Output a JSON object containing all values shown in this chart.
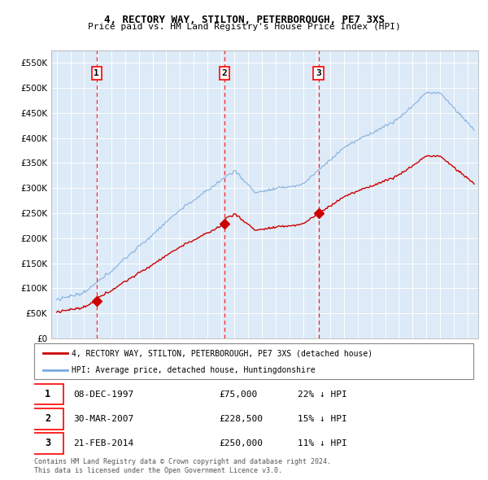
{
  "title1": "4, RECTORY WAY, STILTON, PETERBOROUGH, PE7 3XS",
  "title2": "Price paid vs. HM Land Registry's House Price Index (HPI)",
  "legend_label_red": "4, RECTORY WAY, STILTON, PETERBOROUGH, PE7 3XS (detached house)",
  "legend_label_blue": "HPI: Average price, detached house, Huntingdonshire",
  "sale1_date": "08-DEC-1997",
  "sale1_price": "£75,000",
  "sale1_hpi": "22% ↓ HPI",
  "sale1_year": 1997.92,
  "sale1_value": 75000,
  "sale2_date": "30-MAR-2007",
  "sale2_price": "£228,500",
  "sale2_hpi": "15% ↓ HPI",
  "sale2_year": 2007.25,
  "sale2_value": 228500,
  "sale3_date": "21-FEB-2014",
  "sale3_price": "£250,000",
  "sale3_hpi": "11% ↓ HPI",
  "sale3_year": 2014.13,
  "sale3_value": 250000,
  "ylim_max": 575000,
  "yticks": [
    0,
    50000,
    100000,
    150000,
    200000,
    250000,
    300000,
    350000,
    400000,
    450000,
    500000,
    550000
  ],
  "bg_color": "#ddeaf7",
  "grid_color": "#ffffff",
  "red_color": "#cc0000",
  "blue_color": "#7aaadd",
  "footer": "Contains HM Land Registry data © Crown copyright and database right 2024.\nThis data is licensed under the Open Government Licence v3.0."
}
